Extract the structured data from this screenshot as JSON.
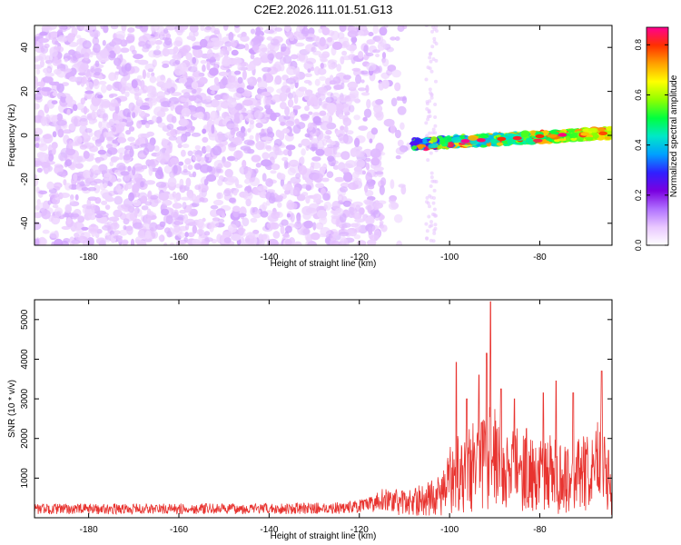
{
  "title": "C2E2.2026.111.01.51.G13",
  "chart_data": [
    {
      "type": "heatmap",
      "name": "spectrogram",
      "xlabel": "Height of straight line (km)",
      "ylabel": "Frequency (Hz)",
      "xlim": [
        -192,
        -64
      ],
      "ylim": [
        -50,
        50
      ],
      "xticks": [
        -180,
        -160,
        -140,
        -120,
        -100,
        -80
      ],
      "yticks": [
        -40,
        -20,
        0,
        20,
        40
      ],
      "colorbar": {
        "label": "Normalized spectral amplitude",
        "range": [
          0.0,
          0.87
        ],
        "ticks": [
          "0.0",
          "0.2",
          "0.4",
          "0.6",
          "0.8"
        ],
        "tick_values": [
          0.0,
          0.2,
          0.4,
          0.6,
          0.8
        ],
        "colors": [
          "#ffffff",
          "#e9c8ff",
          "#b070ff",
          "#7a00e0",
          "#3020ff",
          "#00a0ff",
          "#00e8c8",
          "#00ff40",
          "#90ff00",
          "#ffff00",
          "#ffa000",
          "#ff3000",
          "#ff0090"
        ]
      },
      "regions": [
        {
          "description_value": "broadband noise",
          "x_range": [
            -192,
            -108
          ],
          "y_range": [
            -50,
            50
          ],
          "amplitude_range": [
            0.0,
            0.15
          ]
        },
        {
          "description_value": "narrowband signal",
          "x_range": [
            -108,
            -64
          ],
          "y_start": -4,
          "y_end": 1,
          "amplitude_range": [
            0.15,
            0.87
          ]
        }
      ]
    },
    {
      "type": "line",
      "name": "snr",
      "xlabel": "Height of straight line (km)",
      "ylabel": "SNR (10 * v/v)",
      "xlim": [
        -192,
        -64
      ],
      "ylim": [
        0,
        5500
      ],
      "xticks": [
        -180,
        -160,
        -140,
        -120,
        -100,
        -80
      ],
      "yticks": [
        1000,
        2000,
        3000,
        4000,
        5000
      ],
      "color": "#e8332f",
      "series": [
        {
          "name": "SNR",
          "x_start": -192,
          "x_end": -64,
          "x": [
            -192,
            -180,
            -160,
            -140,
            -125,
            -118,
            -115,
            -112,
            -110,
            -106,
            -104,
            -102,
            -100.5,
            -99,
            -98,
            -97,
            -95,
            -93,
            -91.5,
            -90.5,
            -89,
            -87,
            -85,
            -82,
            -80,
            -78,
            -76,
            -74,
            -72,
            -70,
            -68,
            -66.5,
            -65,
            -64
          ],
          "baseline": [
            250,
            255,
            255,
            260,
            280,
            350,
            550,
            450,
            420,
            520,
            600,
            650,
            900,
            1400,
            1500,
            1300,
            1500,
            1500,
            2100,
            2000,
            1400,
            1300,
            1500,
            1400,
            1200,
            1300,
            1200,
            1200,
            1200,
            1300,
            1200,
            1900,
            1000,
            700
          ],
          "peaks": [
            [
              -98.5,
              3920
            ],
            [
              -96.2,
              3000
            ],
            [
              -93.5,
              3600
            ],
            [
              -91.8,
              4150
            ],
            [
              -90.9,
              5450
            ],
            [
              -88.6,
              3250
            ],
            [
              -85.6,
              3000
            ],
            [
              -79.2,
              3150
            ],
            [
              -76.4,
              3450
            ],
            [
              -72.6,
              3150
            ],
            [
              -66.3,
              3700
            ],
            [
              -64.8,
              1700
            ]
          ]
        }
      ]
    }
  ]
}
